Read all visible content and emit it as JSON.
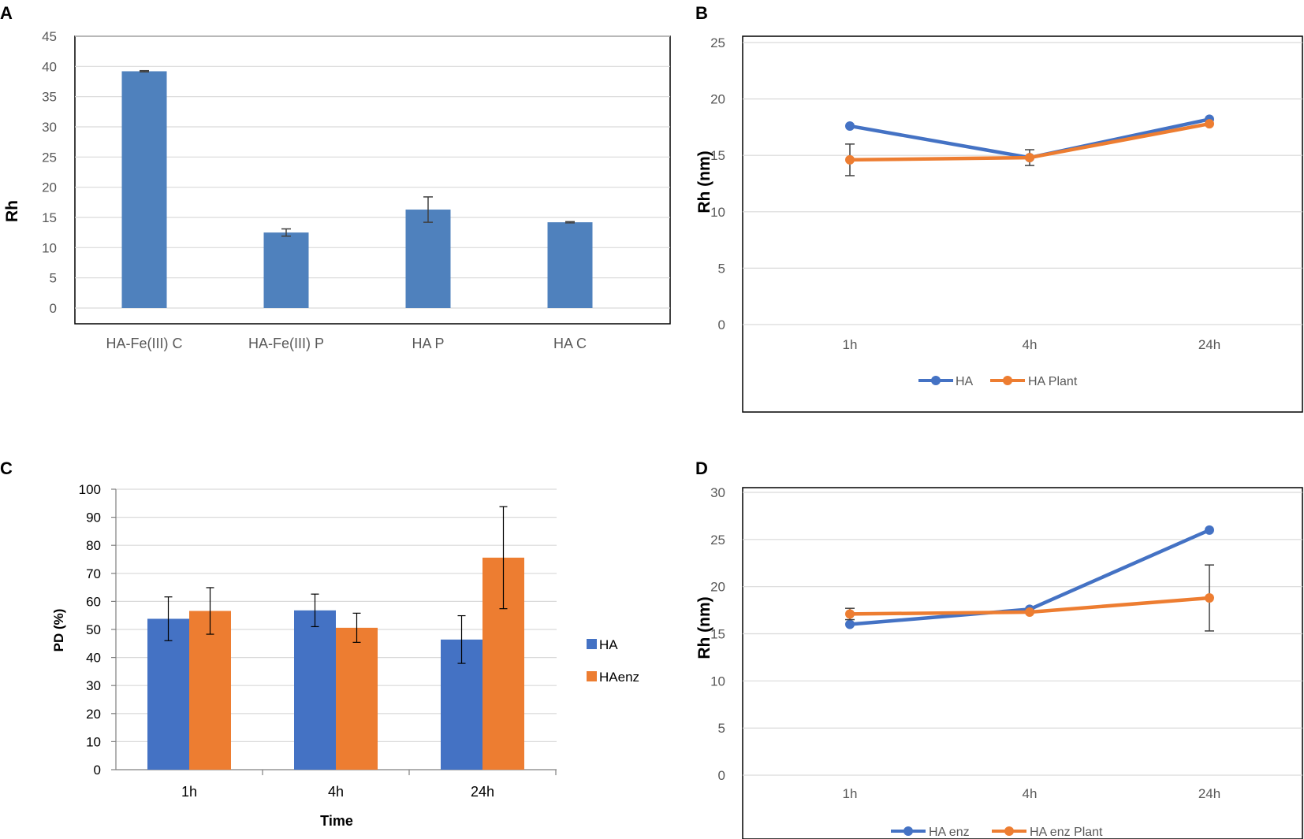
{
  "panel_letters": [
    "A",
    "B",
    "C",
    "D"
  ],
  "colors": {
    "blue": "#4472c4",
    "blue_a": "#4f81bd",
    "orange": "#ed7d31",
    "grid": "#d9d9d9",
    "error": "#404040"
  },
  "chart_data": [
    {
      "panel": "A",
      "type": "bar",
      "title": "",
      "xlabel": "",
      "ylabel": "Rh",
      "ylim": [
        0,
        45
      ],
      "yticks": [
        "0",
        "5",
        "10",
        "15",
        "20",
        "25",
        "30",
        "35",
        "40",
        "45"
      ],
      "categories": [
        "HA-Fe(III) C",
        "HA-Fe(III) P",
        "HA P",
        "HA C"
      ],
      "series": [
        {
          "name": "Rh",
          "values": [
            39.2,
            12.5,
            16.3,
            14.2
          ],
          "errors": [
            0.1,
            0.6,
            2.1,
            0.1
          ]
        }
      ],
      "grid": true,
      "legend": "none"
    },
    {
      "panel": "B",
      "type": "line",
      "title": "",
      "xlabel": "",
      "ylabel": "Rh (nm)",
      "ylim": [
        0,
        25
      ],
      "yticks": [
        "0",
        "5",
        "10",
        "15",
        "20",
        "25"
      ],
      "categories": [
        "1h",
        "4h",
        "24h"
      ],
      "series": [
        {
          "name": "HA",
          "values": [
            17.6,
            14.8,
            18.2
          ],
          "errors": [
            0,
            0,
            0
          ]
        },
        {
          "name": "HA Plant",
          "values": [
            14.6,
            14.8,
            17.8
          ],
          "errors": [
            1.4,
            0.7,
            0
          ]
        }
      ],
      "grid": true,
      "legend": "bottom"
    },
    {
      "panel": "C",
      "type": "bar",
      "title": "",
      "xlabel": "Time",
      "ylabel": "PD (%)",
      "ylim": [
        0,
        100
      ],
      "yticks": [
        "0",
        "10",
        "20",
        "30",
        "40",
        "50",
        "60",
        "70",
        "80",
        "90",
        "100"
      ],
      "categories": [
        "1h",
        "4h",
        "24h"
      ],
      "series": [
        {
          "name": "HA",
          "values": [
            53.8,
            56.8,
            46.4
          ],
          "errors": [
            7.8,
            5.8,
            8.5
          ]
        },
        {
          "name": "HAenz",
          "values": [
            56.6,
            50.6,
            75.6
          ],
          "errors": [
            8.3,
            5.2,
            18.2
          ]
        }
      ],
      "grid": true,
      "legend": "right"
    },
    {
      "panel": "D",
      "type": "line",
      "title": "",
      "xlabel": "",
      "ylabel": "Rh (nm)",
      "ylim": [
        0,
        30
      ],
      "yticks": [
        "0",
        "5",
        "10",
        "15",
        "20",
        "25",
        "30"
      ],
      "categories": [
        "1h",
        "4h",
        "24h"
      ],
      "series": [
        {
          "name": "HA enz",
          "values": [
            16.0,
            17.6,
            26.0
          ],
          "errors": [
            0,
            0,
            0
          ]
        },
        {
          "name": "HA enz Plant",
          "values": [
            17.1,
            17.3,
            18.8
          ],
          "errors": [
            0.6,
            0,
            3.5
          ]
        }
      ],
      "grid": true,
      "legend": "bottom"
    }
  ]
}
